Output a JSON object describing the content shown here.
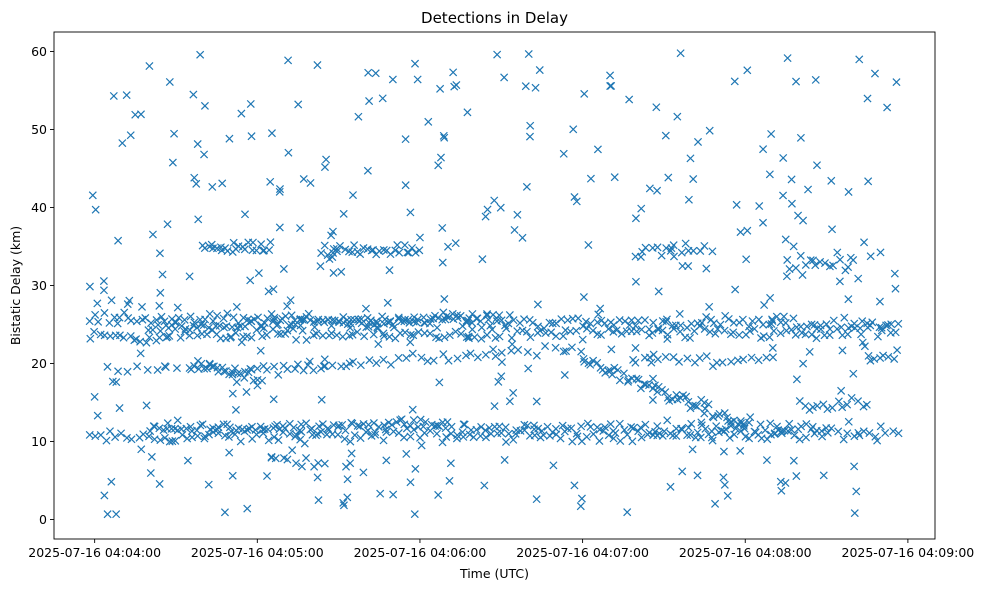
{
  "chart_data": {
    "type": "scatter",
    "title": "Detections in Delay",
    "xlabel": "Time (UTC)",
    "ylabel": "Bistatic Delay (km)",
    "marker": "x",
    "color": "#1f77b4",
    "grid": false,
    "legend": "none",
    "x_axis": {
      "type": "time",
      "range": [
        "2025-07-16 04:03:45",
        "2025-07-16 04:09:10"
      ],
      "ticks": [
        "2025-07-16 04:04:00",
        "2025-07-16 04:05:00",
        "2025-07-16 04:06:00",
        "2025-07-16 04:07:00",
        "2025-07-16 04:08:00",
        "2025-07-16 04:09:00"
      ]
    },
    "y_axis": {
      "range": [
        -2.5,
        62.5
      ],
      "ticks": [
        0,
        10,
        20,
        30,
        40,
        50,
        60
      ]
    },
    "series": [
      {
        "segments": [
          {
            "t0": "2025-07-16 04:03:58",
            "t1": "2025-07-16 04:08:56",
            "y0": 10.5,
            "y1": 11.0,
            "count": 150
          },
          {
            "t0": "2025-07-16 04:04:20",
            "t1": "2025-07-16 04:06:10",
            "y0": 11.5,
            "y1": 12.2,
            "count": 90
          },
          {
            "t0": "2025-07-16 04:06:10",
            "t1": "2025-07-16 04:08:30",
            "y0": 11.5,
            "y1": 12.0,
            "count": 80
          },
          {
            "t0": "2025-07-16 04:03:58",
            "t1": "2025-07-16 04:08:56",
            "y0": 25.8,
            "y1": 25.0,
            "count": 170
          },
          {
            "t0": "2025-07-16 04:03:58",
            "t1": "2025-07-16 04:08:56",
            "y0": 23.5,
            "y1": 24.0,
            "count": 160
          },
          {
            "t0": "2025-07-16 04:04:20",
            "t1": "2025-07-16 04:06:30",
            "y0": 24.5,
            "y1": 26.0,
            "count": 90
          },
          {
            "t0": "2025-07-16 04:04:05",
            "t1": "2025-07-16 04:04:30",
            "y0": 19.0,
            "y1": 19.0,
            "count": 8
          },
          {
            "t0": "2025-07-16 04:04:35",
            "t1": "2025-07-16 04:05:00",
            "y0": 20.0,
            "y1": 18.5,
            "count": 30
          },
          {
            "t0": "2025-07-16 04:05:00",
            "t1": "2025-07-16 04:05:25",
            "y0": 19.0,
            "y1": 19.5,
            "count": 14
          },
          {
            "t0": "2025-07-16 04:05:25",
            "t1": "2025-07-16 04:06:30",
            "y0": 20.0,
            "y1": 21.0,
            "count": 25
          },
          {
            "t0": "2025-07-16 04:06:30",
            "t1": "2025-07-16 04:07:00",
            "y0": 21.5,
            "y1": 21.5,
            "count": 10
          },
          {
            "t0": "2025-07-16 04:07:00",
            "t1": "2025-07-16 04:08:00",
            "y0": 20.5,
            "y1": 12.0,
            "count": 60
          },
          {
            "t0": "2025-07-16 04:07:20",
            "t1": "2025-07-16 04:08:10",
            "y0": 20.5,
            "y1": 20.5,
            "count": 20
          },
          {
            "t0": "2025-07-16 04:08:45",
            "t1": "2025-07-16 04:08:56",
            "y0": 20.7,
            "y1": 20.7,
            "count": 8
          },
          {
            "t0": "2025-07-16 04:04:40",
            "t1": "2025-07-16 04:05:05",
            "y0": 34.8,
            "y1": 35.0,
            "count": 25
          },
          {
            "t0": "2025-07-16 04:05:25",
            "t1": "2025-07-16 04:06:00",
            "y0": 34.5,
            "y1": 34.7,
            "count": 30
          },
          {
            "t0": "2025-07-16 04:07:20",
            "t1": "2025-07-16 04:07:45",
            "y0": 34.5,
            "y1": 34.5,
            "count": 15
          },
          {
            "t0": "2025-07-16 04:08:15",
            "t1": "2025-07-16 04:08:40",
            "y0": 33.0,
            "y1": 32.5,
            "count": 15
          },
          {
            "t0": "2025-07-16 04:08:20",
            "t1": "2025-07-16 04:08:45",
            "y0": 14.5,
            "y1": 14.8,
            "count": 15
          },
          {
            "t0": "2025-07-16 04:05:05",
            "t1": "2025-07-16 04:05:25",
            "y0": 7.5,
            "y1": 7.5,
            "count": 10
          }
        ],
        "noise": {
          "t0": "2025-07-16 04:03:58",
          "t1": "2025-07-16 04:08:56",
          "y0": 0.5,
          "y1": 59.8,
          "count": 380
        }
      }
    ]
  }
}
